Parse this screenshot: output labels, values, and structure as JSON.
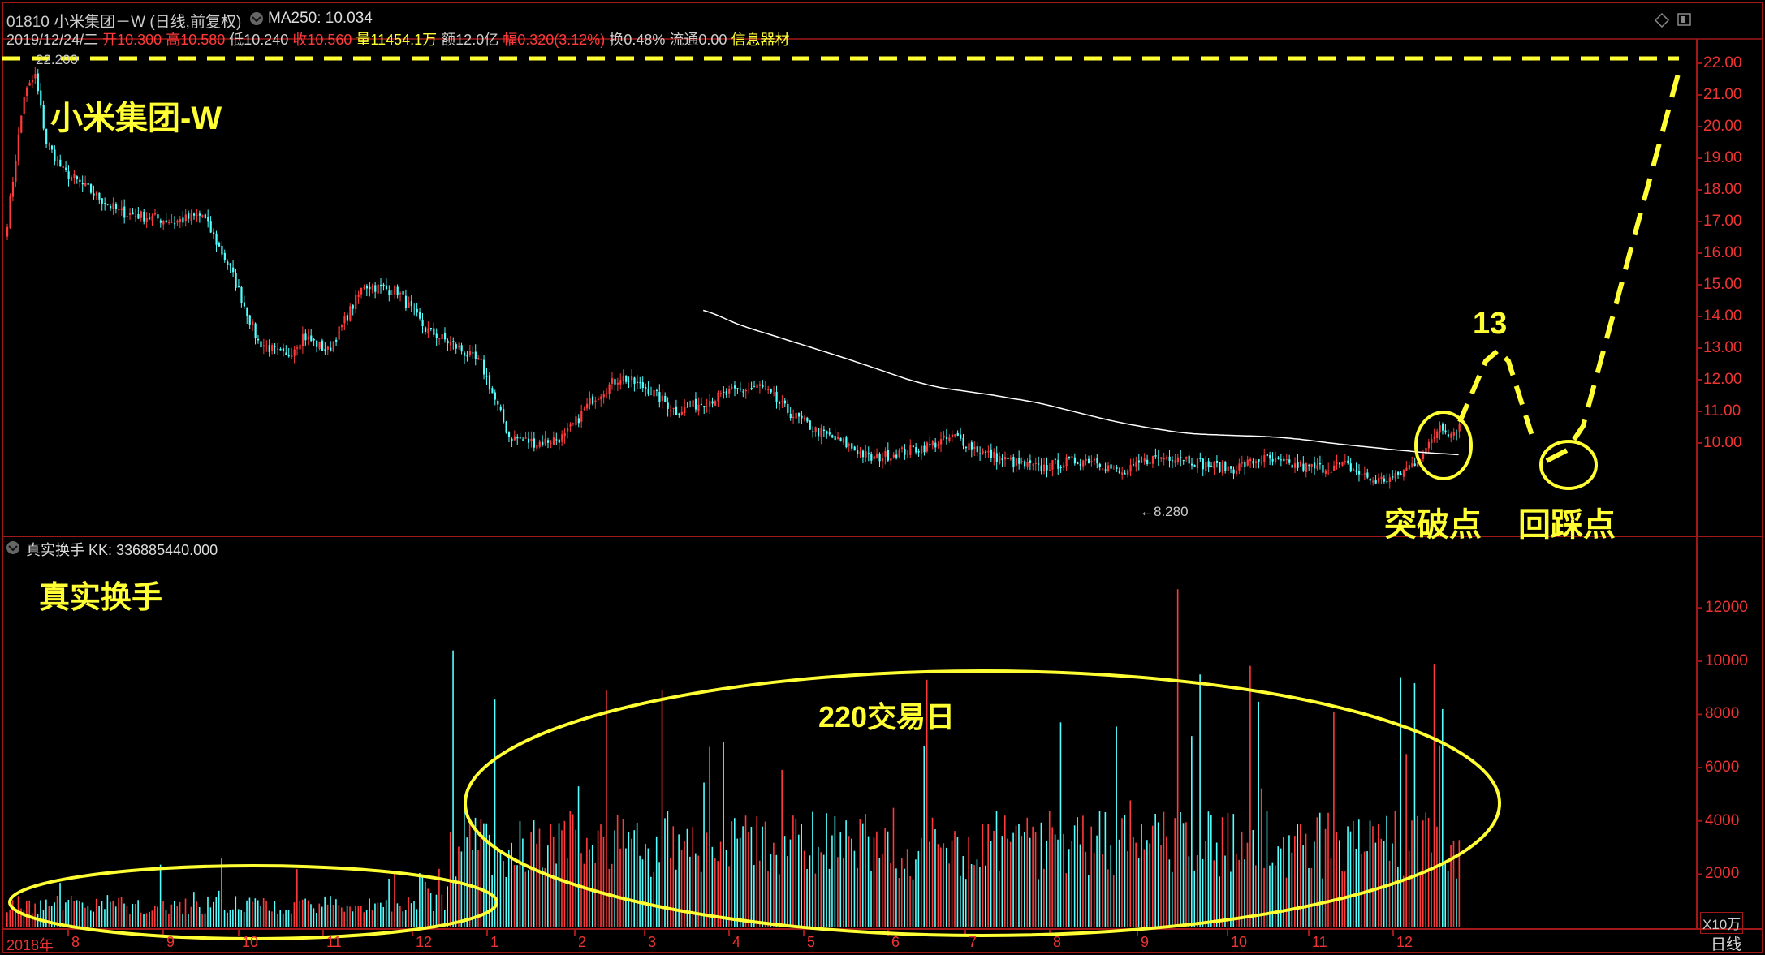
{
  "header": {
    "code": "01810",
    "name": "小米集团－W",
    "mode": "(日线,前复权)",
    "ma_label": "MA250: 10.034",
    "date": "2019/12/24/二",
    "open_k": "开",
    "open_v": "10.300",
    "high_k": "高",
    "high_v": "10.580",
    "low_k": "低",
    "low_v": "10.240",
    "close_k": "收",
    "close_v": "10.560",
    "vol_k": "量",
    "vol_v": "11454.1万",
    "amt_k": "额",
    "amt_v": "12.0亿",
    "chg_k": "幅",
    "chg_v": "0.320(3.12%)",
    "turn_k": "换",
    "turn_v": "0.48%",
    "float_k": "流通",
    "float_v": "0.00",
    "sector": "信息器材"
  },
  "main_chart": {
    "title_overlay": "小米集团-W",
    "high_marker": "22.200",
    "low_marker": "←8.280",
    "label_13": "13",
    "label_breakout": "突破点",
    "label_pullback": "回踩点",
    "y_ticks": [
      "22.00",
      "21.00",
      "20.00",
      "19.00",
      "18.00",
      "17.00",
      "16.00",
      "15.00",
      "14.00",
      "13.00",
      "12.00",
      "11.00",
      "10.00"
    ]
  },
  "sub_chart": {
    "header": "真实换手  KK: 336885440.000",
    "title_overlay": "真实换手",
    "label_220": "220交易日",
    "y_ticks": [
      "12000",
      "10000",
      "8000",
      "6000",
      "4000",
      "2000"
    ],
    "unit": "X10万"
  },
  "x_axis": {
    "labels": [
      "2018年",
      "8",
      "9",
      "10",
      "11",
      "12",
      "1",
      "2",
      "3",
      "4",
      "5",
      "6",
      "7",
      "8",
      "9",
      "10",
      "11",
      "12"
    ],
    "period": "日线"
  },
  "colors": {
    "up": "#ff3a3a",
    "down": "#54ffff",
    "ma": "#ffffff",
    "annotation": "#ffff33",
    "grid": "#a01818"
  },
  "chart_data": {
    "type": "candlestick+bar",
    "price_ylim": [
      8.0,
      22.5
    ],
    "price_high": 22.2,
    "price_low": 8.28,
    "ma250_last": 10.034,
    "turnover_ylim": [
      0,
      13500
    ],
    "turnover_unit": "X10万",
    "annotations": [
      "突破点",
      "回踩点",
      "13",
      "220交易日"
    ]
  }
}
